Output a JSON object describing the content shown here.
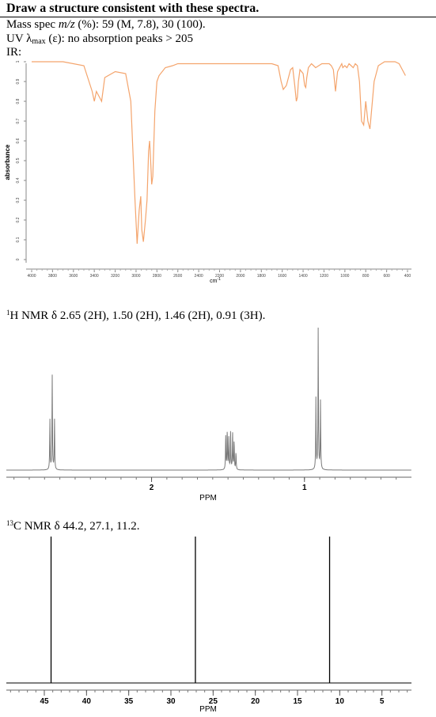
{
  "header": {
    "title": "Draw a structure consistent with these spectra."
  },
  "mass_spec": {
    "prefix": "Mass spec ",
    "mz": "m/z",
    "rest": " (%): 59 (M, 7.8), 30 (100)."
  },
  "uv": {
    "prefix": "UV λ",
    "subscript": "max",
    "rest": " (ε): no absorption peaks > 205"
  },
  "ir": {
    "label": "IR:",
    "ylabel": "absorbance",
    "xlabel": "cm",
    "xlabel_sup": "-1",
    "yticks": [
      "0",
      "0.1",
      "0.2",
      "0.3",
      "0.4",
      "0.5",
      "0.6",
      "0.7",
      "0.8",
      "0.9",
      "1"
    ],
    "xticks": [
      "4000",
      "3800",
      "3600",
      "3400",
      "3200",
      "3000",
      "2800",
      "2600",
      "2400",
      "2200",
      "2000",
      "1800",
      "1600",
      "1400",
      "1200",
      "1000",
      "800",
      "600",
      "400"
    ]
  },
  "h_nmr": {
    "superscript": "1",
    "text": "H NMR δ 2.65 (2H), 1.50 (2H), 1.46 (2H), 0.91 (3H).",
    "xlabel": "PPM",
    "xticks": [
      "2",
      "1"
    ]
  },
  "c_nmr": {
    "superscript": "13",
    "text": "C NMR δ 44.2, 27.1, 11.2.",
    "xlabel": "PPM",
    "xticks": [
      "45",
      "40",
      "35",
      "30",
      "25",
      "20",
      "15",
      "10",
      "5"
    ]
  },
  "chart_data": [
    {
      "type": "line",
      "name": "IR spectrum",
      "x_unit": "cm-1",
      "y_unit": "absorbance",
      "xlim": [
        4000,
        400
      ],
      "ylim": [
        0,
        1
      ],
      "color": "#f4a46c",
      "x": [
        4000,
        3700,
        3500,
        3420,
        3400,
        3380,
        3350,
        3330,
        3300,
        3200,
        3100,
        3050,
        3010,
        2990,
        2970,
        2955,
        2945,
        2930,
        2910,
        2895,
        2880,
        2870,
        2860,
        2850,
        2840,
        2820,
        2800,
        2780,
        2720,
        2650,
        2600,
        2500,
        2300,
        2100,
        1900,
        1700,
        1640,
        1610,
        1590,
        1560,
        1520,
        1500,
        1480,
        1465,
        1455,
        1445,
        1430,
        1400,
        1385,
        1375,
        1365,
        1350,
        1320,
        1300,
        1280,
        1250,
        1220,
        1200,
        1180,
        1150,
        1130,
        1110,
        1090,
        1070,
        1050,
        1030,
        1020,
        1000,
        980,
        960,
        940,
        920,
        900,
        880,
        860,
        840,
        820,
        800,
        780,
        760,
        720,
        680,
        620,
        520,
        480,
        450,
        420
      ],
      "y": [
        1,
        1,
        0.98,
        0.85,
        0.8,
        0.85,
        0.82,
        0.8,
        0.92,
        0.95,
        0.94,
        0.8,
        0.3,
        0.08,
        0.25,
        0.32,
        0.15,
        0.09,
        0.2,
        0.3,
        0.55,
        0.6,
        0.5,
        0.38,
        0.42,
        0.75,
        0.9,
        0.93,
        0.97,
        0.98,
        0.99,
        0.99,
        0.99,
        0.99,
        0.99,
        0.99,
        0.98,
        0.9,
        0.86,
        0.88,
        0.96,
        0.97,
        0.88,
        0.8,
        0.82,
        0.9,
        0.96,
        0.94,
        0.88,
        0.87,
        0.92,
        0.97,
        0.99,
        0.98,
        0.97,
        0.98,
        0.99,
        0.99,
        0.99,
        0.99,
        0.98,
        0.96,
        0.85,
        0.95,
        0.97,
        0.99,
        0.97,
        0.98,
        0.97,
        0.99,
        0.98,
        0.97,
        0.99,
        0.98,
        0.9,
        0.7,
        0.68,
        0.8,
        0.7,
        0.66,
        0.9,
        0.98,
        1,
        1,
        0.99,
        0.96,
        0.93
      ]
    },
    {
      "type": "line",
      "name": "1H NMR spectrum",
      "x_unit": "ppm",
      "xlim": [
        2.95,
        0.3
      ],
      "ylim": [
        0,
        1
      ],
      "peaks": [
        {
          "ppm": 2.665,
          "h": 0.35
        },
        {
          "ppm": 2.65,
          "h": 0.66
        },
        {
          "ppm": 2.635,
          "h": 0.35
        },
        {
          "ppm": 1.515,
          "h": 0.25
        },
        {
          "ppm": 1.505,
          "h": 0.27
        },
        {
          "ppm": 1.495,
          "h": 0.22
        },
        {
          "ppm": 1.483,
          "h": 0.26
        },
        {
          "ppm": 1.47,
          "h": 0.27
        },
        {
          "ppm": 1.46,
          "h": 0.2
        },
        {
          "ppm": 1.448,
          "h": 0.12
        },
        {
          "ppm": 0.925,
          "h": 0.5
        },
        {
          "ppm": 0.91,
          "h": 1.0
        },
        {
          "ppm": 0.895,
          "h": 0.48
        }
      ]
    },
    {
      "type": "bar",
      "name": "13C NMR spectrum",
      "x_unit": "ppm",
      "xlim": [
        49.5,
        1.5
      ],
      "ylim": [
        0,
        1
      ],
      "peaks": [
        44.2,
        27.1,
        11.2
      ]
    }
  ]
}
